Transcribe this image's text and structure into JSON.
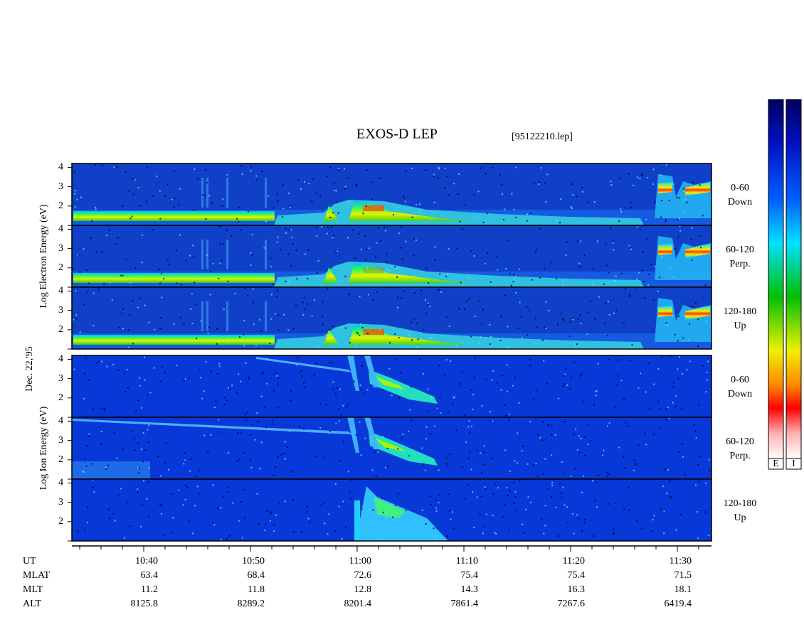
{
  "title": "EXOS-D LEP",
  "file": "[95122210.lep]",
  "date": "Dec. 22,'95",
  "type": "spectrogram",
  "energy_axis": {
    "ylim": [
      1,
      4.2
    ],
    "yticks": [
      2,
      3,
      4
    ]
  },
  "groups": [
    {
      "axis_label": "Log  Electron  Energy (eV)",
      "panels": [
        {
          "pitch": "0-60",
          "direction": "Down"
        },
        {
          "pitch": "60-120",
          "direction": "Perp."
        },
        {
          "pitch": "120-180",
          "direction": "Up"
        }
      ]
    },
    {
      "axis_label": "Log  Ion  Energy (eV)",
      "panels": [
        {
          "pitch": "0-60",
          "direction": "Down"
        },
        {
          "pitch": "60-120",
          "direction": "Perp."
        },
        {
          "pitch": "120-180",
          "direction": "Up"
        }
      ]
    }
  ],
  "time_axis": {
    "label": "UT",
    "categories": [
      "10:40",
      "10:50",
      "11:00",
      "11:10",
      "11:20",
      "11:30"
    ]
  },
  "ephemeris": [
    {
      "label": "MLAT",
      "values": [
        63.4,
        68.4,
        72.6,
        75.4,
        75.4,
        71.5
      ]
    },
    {
      "label": "MLT",
      "values": [
        11.2,
        11.8,
        12.8,
        14.3,
        16.3,
        18.1
      ]
    },
    {
      "label": "ALT",
      "values": [
        8125.8,
        8289.2,
        8201.4,
        7861.4,
        7267.6,
        6419.4
      ]
    }
  ],
  "colorbars": [
    "E",
    "I"
  ]
}
